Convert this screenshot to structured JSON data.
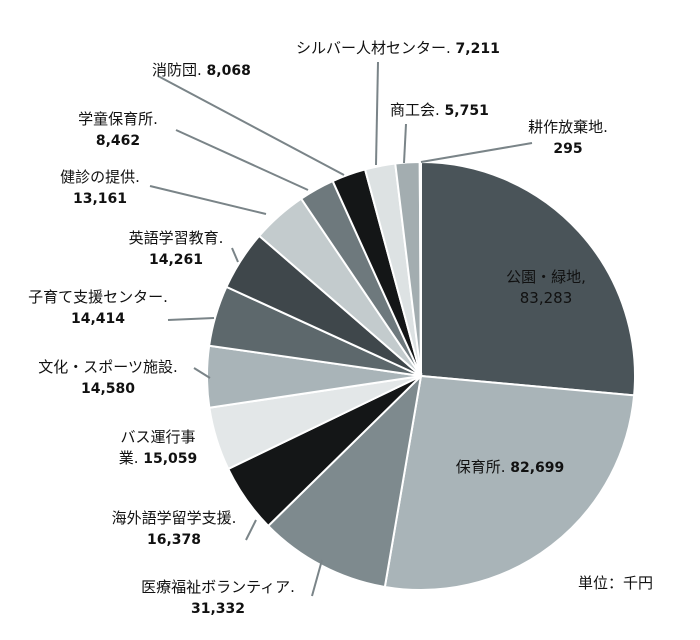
{
  "chart_data": {
    "type": "pie",
    "unit_label": "単位：千円",
    "slices": [
      {
        "name": "公園・緑地",
        "value": 83283,
        "value_label": "83,283",
        "color": "#4a5459",
        "label_color": "#ffffff"
      },
      {
        "name": "保育所",
        "value": 82699,
        "value_label": "82,699",
        "color": "#a9b4b8",
        "label_color": "#111111"
      },
      {
        "name": "医療福祉ボランティア",
        "value": 31332,
        "value_label": "31,332",
        "color": "#7e8a8e",
        "label_color": "#111111"
      },
      {
        "name": "海外語学留学支援",
        "value": 16378,
        "value_label": "16,378",
        "color": "#141617",
        "label_color": "#111111"
      },
      {
        "name": "バス運行事業",
        "value": 15059,
        "value_label": "15,059",
        "color": "#e3e7e8",
        "label_color": "#111111"
      },
      {
        "name": "文化・スポーツ施設",
        "value": 14580,
        "value_label": "14,580",
        "color": "#a9b4b8",
        "label_color": "#111111"
      },
      {
        "name": "子育て支援センター",
        "value": 14414,
        "value_label": "14,414",
        "color": "#5d686c",
        "label_color": "#111111"
      },
      {
        "name": "英語学習教育",
        "value": 14261,
        "value_label": "14,261",
        "color": "#3f474b",
        "label_color": "#111111"
      },
      {
        "name": "健診の提供",
        "value": 13161,
        "value_label": "13,161",
        "color": "#c3cbcd",
        "label_color": "#111111"
      },
      {
        "name": "学童保育所",
        "value": 8462,
        "value_label": "8,462",
        "color": "#6e797d",
        "label_color": "#111111"
      },
      {
        "name": "消防団",
        "value": 8068,
        "value_label": "8,068",
        "color": "#141617",
        "label_color": "#111111"
      },
      {
        "name": "シルバー人材センター",
        "value": 7211,
        "value_label": "7,211",
        "color": "#dde2e3",
        "label_color": "#111111"
      },
      {
        "name": "商工会",
        "value": 5751,
        "value_label": "5,751",
        "color": "#a3adb0",
        "label_color": "#111111"
      },
      {
        "name": "耕作放棄地",
        "value": 295,
        "value_label": "295",
        "color": "#c3cbcd",
        "label_color": "#111111"
      }
    ]
  }
}
